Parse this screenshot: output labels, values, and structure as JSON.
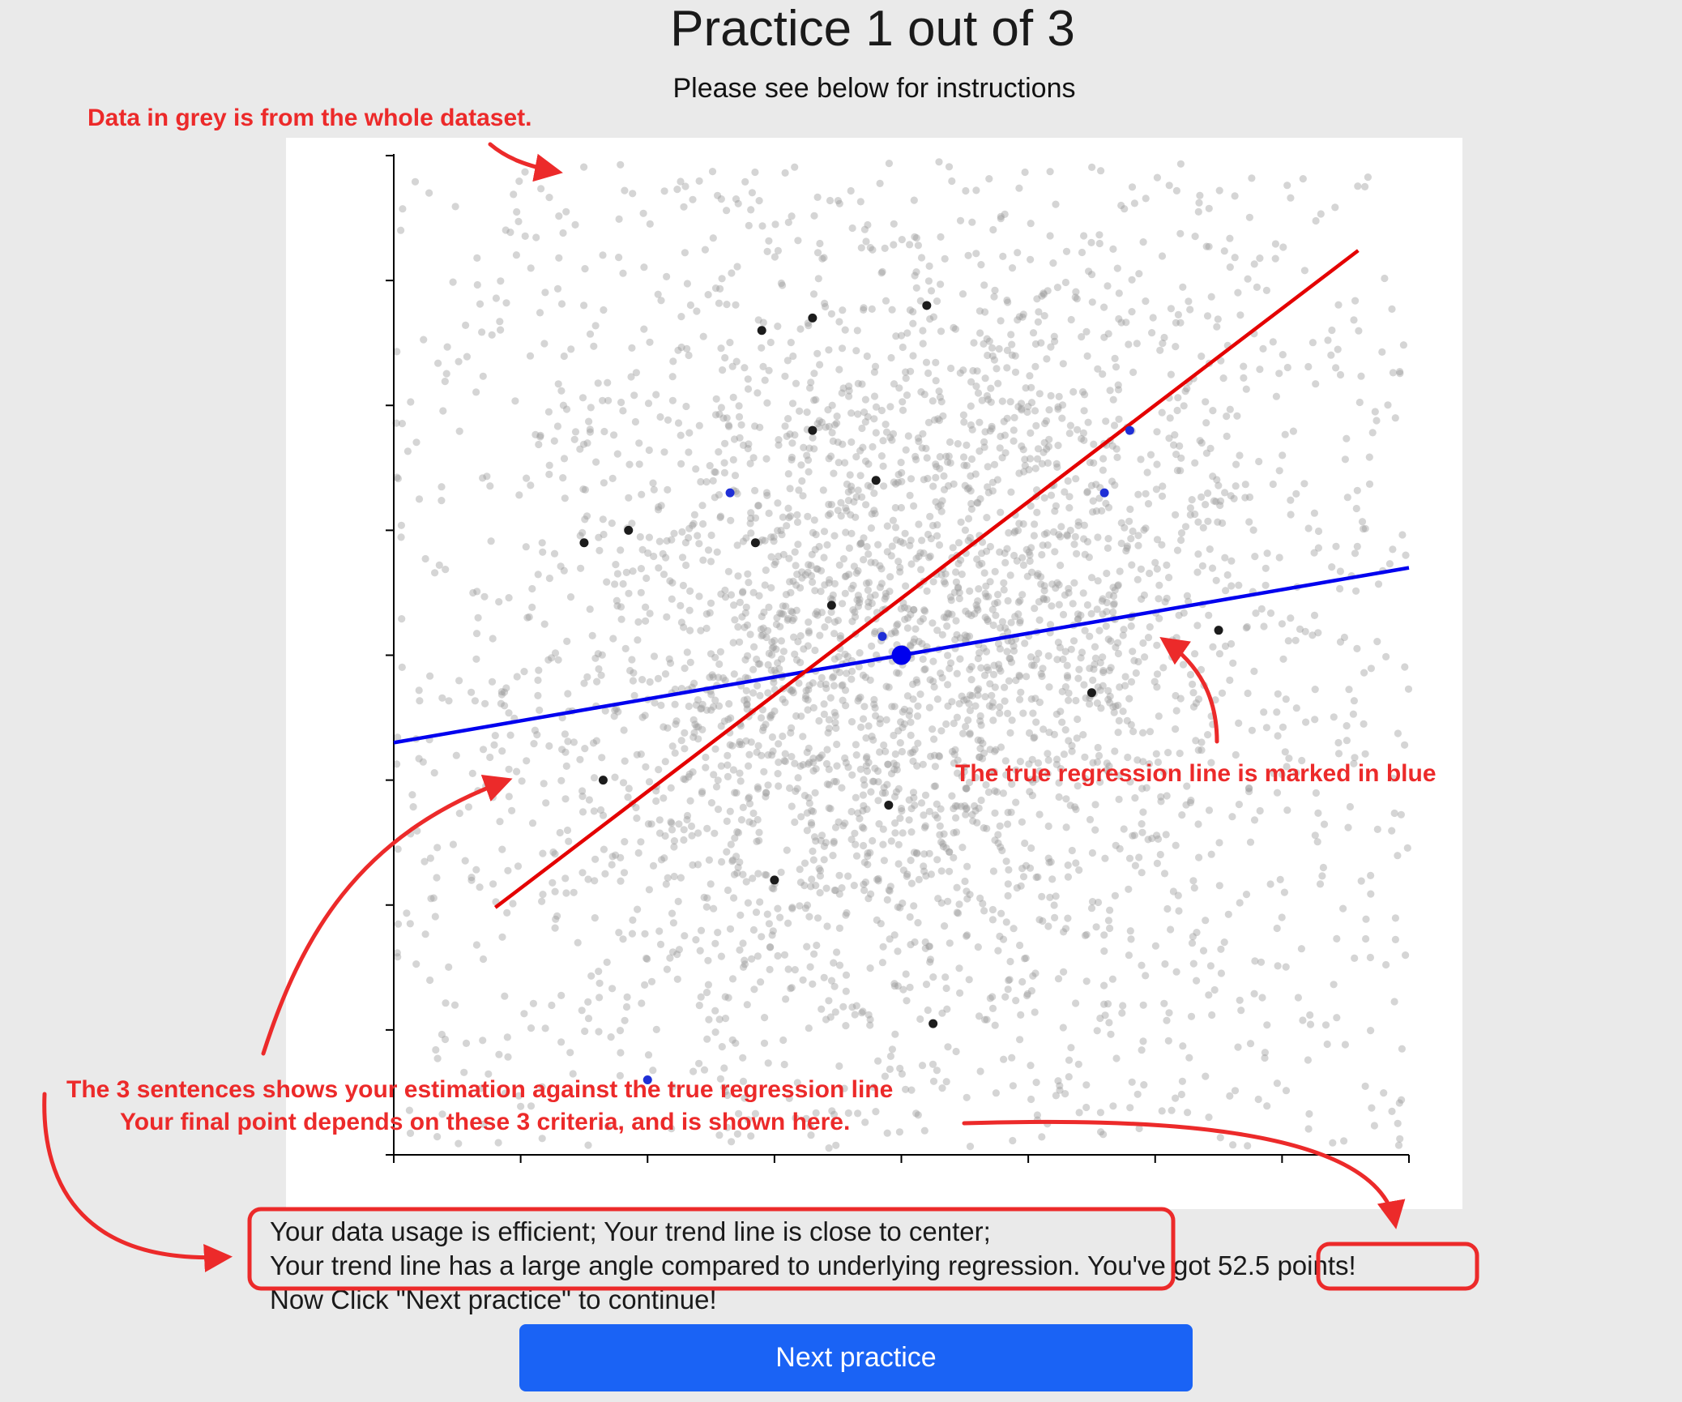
{
  "header": {
    "title": "Practice 1 out of 3",
    "subtitle": "Please see below for instructions"
  },
  "annotations": {
    "grey_data": "Data in grey is from the whole dataset.",
    "true_line": "The true regression line is marked in blue",
    "three_sentences": "The 3 sentences shows your estimation against the true regression line",
    "final_point": "Your final point depends on these 3 criteria, and is shown here.",
    "color": "#ec2a2a"
  },
  "feedback": {
    "line1": "Your data usage is efficient; Your trend line is close to center;",
    "line2_main": "Your trend line has a large angle compared to underlying regression.",
    "line2_prefix": " You've got ",
    "points": "52.5 points",
    "line2_suffix": "!",
    "line3": "Now Click \"Next practice\" to continue!"
  },
  "buttons": {
    "next_label": "Next practice"
  },
  "colors": {
    "background": "#eaeaea",
    "plot_bg": "#ffffff",
    "grey_points": "#9a9a9a",
    "sample_points": "#1c1c1c",
    "true_line": "#0000ee",
    "user_line": "#e40000",
    "button": "#1a63f5"
  },
  "chart_data": {
    "type": "scatter",
    "title": "",
    "xlabel": "",
    "ylabel": "",
    "xlim": [
      0,
      8
    ],
    "ylim": [
      0,
      8
    ],
    "x_ticks": 8,
    "y_ticks": 8,
    "tick_labels_shown": false,
    "background_points": {
      "count": 3600,
      "label": "whole dataset",
      "color": "#9a9a9a"
    },
    "sample_points": [
      {
        "x": 2.9,
        "y": 6.6,
        "color": "black"
      },
      {
        "x": 3.3,
        "y": 6.7,
        "color": "black"
      },
      {
        "x": 4.2,
        "y": 6.8,
        "color": "black"
      },
      {
        "x": 3.3,
        "y": 5.8,
        "color": "black"
      },
      {
        "x": 3.8,
        "y": 5.4,
        "color": "black"
      },
      {
        "x": 1.5,
        "y": 4.9,
        "color": "black"
      },
      {
        "x": 1.85,
        "y": 5.0,
        "color": "black"
      },
      {
        "x": 2.85,
        "y": 4.9,
        "color": "black"
      },
      {
        "x": 3.45,
        "y": 4.4,
        "color": "black"
      },
      {
        "x": 6.5,
        "y": 4.2,
        "color": "black"
      },
      {
        "x": 5.5,
        "y": 3.7,
        "color": "black"
      },
      {
        "x": 1.65,
        "y": 3.0,
        "color": "black"
      },
      {
        "x": 3.9,
        "y": 2.8,
        "color": "black"
      },
      {
        "x": 3.0,
        "y": 2.2,
        "color": "black"
      },
      {
        "x": 4.25,
        "y": 1.05,
        "color": "black"
      },
      {
        "x": 2.65,
        "y": 5.3,
        "color": "blue"
      },
      {
        "x": 5.8,
        "y": 5.8,
        "color": "blue"
      },
      {
        "x": 5.6,
        "y": 5.3,
        "color": "blue"
      },
      {
        "x": 3.85,
        "y": 4.15,
        "color": "blue"
      },
      {
        "x": 2.0,
        "y": 0.6,
        "color": "blue"
      }
    ],
    "series": [
      {
        "name": "true regression line",
        "color": "blue",
        "x": [
          0,
          8
        ],
        "y": [
          3.3,
          4.7
        ]
      },
      {
        "name": "user trend line",
        "color": "red",
        "x": [
          0.8,
          7.6
        ],
        "y": [
          1.98,
          7.24
        ]
      }
    ],
    "center_point": {
      "x": 4.0,
      "y": 4.0,
      "color": "blue"
    }
  }
}
